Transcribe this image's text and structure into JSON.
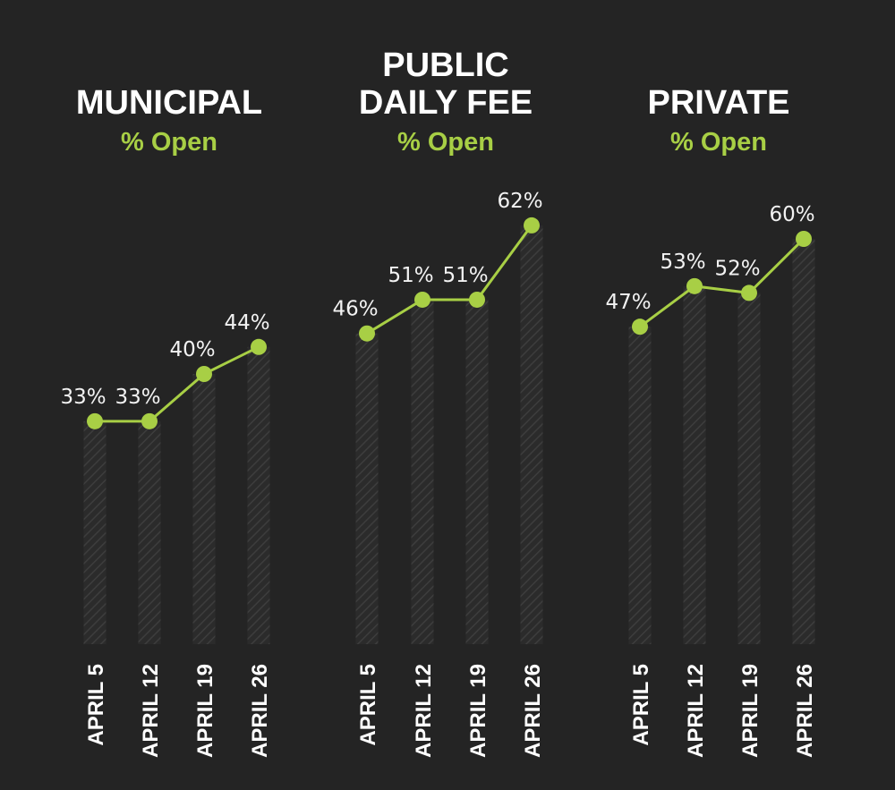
{
  "colors": {
    "background": "#242424",
    "line": "#a8cf45",
    "bar_hatch": "#3a3a3a",
    "text": "#ffffff",
    "subtitle": "#a8cf45"
  },
  "chart_data": [
    {
      "type": "line",
      "title": [
        "MUNICIPAL"
      ],
      "subtitle": "% Open",
      "categories": [
        "APRIL 5",
        "APRIL 12",
        "APRIL 19",
        "APRIL 26"
      ],
      "values": [
        33,
        33,
        40,
        44
      ],
      "data_labels": [
        "33%",
        "33%",
        "40%",
        "44%"
      ],
      "unit": "%",
      "ylim": [
        0,
        100
      ],
      "bars_under_points": true
    },
    {
      "type": "line",
      "title": [
        "PUBLIC",
        "DAILY FEE"
      ],
      "subtitle": "% Open",
      "categories": [
        "APRIL 5",
        "APRIL 12",
        "APRIL 19",
        "APRIL 26"
      ],
      "values": [
        46,
        51,
        51,
        62
      ],
      "data_labels": [
        "46%",
        "51%",
        "51%",
        "62%"
      ],
      "unit": "%",
      "ylim": [
        0,
        100
      ],
      "bars_under_points": true
    },
    {
      "type": "line",
      "title": [
        "PRIVATE"
      ],
      "subtitle": "% Open",
      "categories": [
        "APRIL 5",
        "APRIL 12",
        "APRIL 19",
        "APRIL 26"
      ],
      "values": [
        47,
        53,
        52,
        60
      ],
      "data_labels": [
        "47%",
        "53%",
        "52%",
        "60%"
      ],
      "unit": "%",
      "ylim": [
        0,
        100
      ],
      "bars_under_points": true
    }
  ]
}
